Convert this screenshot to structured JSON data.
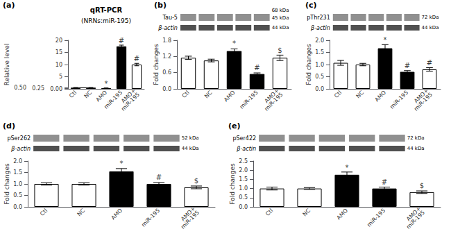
{
  "chart_data": [
    {
      "type": "bar",
      "panel_label": "(a)",
      "title": "qRT-PCR",
      "subtitle": "(NRNs:miR-195)",
      "categories": [
        "Ctl",
        "NC",
        "AMO",
        "miR-195",
        "AMO+\nmiR-195"
      ],
      "values": [
        0.5,
        0.5,
        0.3,
        17.5,
        10.0
      ],
      "errors": [
        0.03,
        0.03,
        0.04,
        0.5,
        0.5
      ],
      "colors": [
        "white",
        "white",
        "black",
        "black",
        "white"
      ],
      "ylabel": "Relative level",
      "ylim": [
        0,
        20
      ],
      "yticks": [
        {
          "value": 0,
          "label": "0.00"
        },
        0.25,
        {
          "value": 0.5,
          "label": "0.50"
        },
        5,
        10,
        15,
        20
      ],
      "annotations": [
        {
          "text": "*",
          "x": "AMO",
          "y": 0.38
        },
        {
          "text": "#",
          "x": "miR-195",
          "y": 18.2
        },
        {
          "text": "#",
          "x": "AMO+\nmiR-195",
          "y": 10.7
        }
      ],
      "bracket": {
        "from": "Ctl",
        "to": "NC",
        "y": 0.6
      },
      "grid": false
    },
    {
      "type": "bar",
      "panel_label": "(b)",
      "blot_labels": [
        "Tau-5",
        "β-actin"
      ],
      "kda_labels": [
        "68 kDa",
        "45 kDa",
        "44 kDa"
      ],
      "categories": [
        "Ctl",
        "NC",
        "AMO",
        "miR-195",
        "AMO+\nmiR-195"
      ],
      "values": [
        1.15,
        1.05,
        1.4,
        0.55,
        1.15
      ],
      "errors": [
        0.06,
        0.05,
        0.08,
        0.04,
        0.1
      ],
      "colors": [
        "white",
        "white",
        "black",
        "black",
        "white"
      ],
      "ylabel": "Fold changes",
      "ylim": [
        0,
        1.8
      ],
      "yticks": [
        {
          "value": 0,
          "label": "0.0"
        },
        0.6,
        1.2,
        1.8
      ],
      "annotations": [
        {
          "text": "*",
          "x": "AMO",
          "y": 1.52
        },
        {
          "text": "#",
          "x": "miR-195",
          "y": 0.63
        },
        {
          "text": "$",
          "x": "AMO+\nmiR-195",
          "y": 1.28
        }
      ],
      "grid": false
    },
    {
      "type": "bar",
      "panel_label": "(c)",
      "blot_labels": [
        "pThr231",
        "β-actin"
      ],
      "kda_labels": [
        "72 kDa",
        "44 kDa"
      ],
      "categories": [
        "Ctl",
        "NC",
        "AMO",
        "miR-195",
        "AMO+\nmiR-195"
      ],
      "values": [
        1.07,
        1.0,
        1.67,
        0.7,
        0.8
      ],
      "errors": [
        0.1,
        0.05,
        0.15,
        0.05,
        0.07
      ],
      "colors": [
        "white",
        "white",
        "black",
        "black",
        "white"
      ],
      "ylabel": "Fold changes",
      "ylim": [
        0,
        2.0
      ],
      "yticks": [
        {
          "value": 0,
          "label": "0.0"
        },
        0.5,
        {
          "value": 1,
          "label": "1.0"
        },
        1.5,
        {
          "value": 2,
          "label": "2.0"
        }
      ],
      "annotations": [
        {
          "text": "*",
          "x": "AMO",
          "y": 1.85
        },
        {
          "text": "#",
          "x": "miR-195",
          "y": 0.78
        },
        {
          "text": "#",
          "x": "AMO+\nmiR-195",
          "y": 0.9
        }
      ],
      "grid": false
    },
    {
      "type": "bar",
      "panel_label": "(d)",
      "blot_labels": [
        "pSer262",
        "β-actin"
      ],
      "kda_labels": [
        "52 kDa",
        "44 kDa"
      ],
      "categories": [
        "Ctl",
        "NC",
        "AMO",
        "miR-195",
        "AMO+\nmiR-195"
      ],
      "values": [
        1.0,
        1.0,
        1.55,
        1.0,
        0.85
      ],
      "errors": [
        0.05,
        0.05,
        0.12,
        0.06,
        0.06
      ],
      "colors": [
        "white",
        "white",
        "black",
        "black",
        "white"
      ],
      "ylabel": "Fold changes",
      "ylim": [
        0,
        2.0
      ],
      "yticks": [
        {
          "value": 0,
          "label": "0.0"
        },
        0.5,
        {
          "value": 1,
          "label": "1.0"
        },
        1.5,
        {
          "value": 2,
          "label": "2.0"
        }
      ],
      "annotations": [
        {
          "text": "*",
          "x": "AMO",
          "y": 1.7
        },
        {
          "text": "#",
          "x": "miR-195",
          "y": 1.1
        },
        {
          "text": "$",
          "x": "AMO+\nmiR-195",
          "y": 0.95
        }
      ],
      "grid": false
    },
    {
      "type": "bar",
      "panel_label": "(e)",
      "blot_labels": [
        "pSer422",
        "β-actin"
      ],
      "kda_labels": [
        "72 kDa",
        "44 kDa"
      ],
      "categories": [
        "Ctl",
        "NC",
        "AMO",
        "miR-195",
        "AMO+\nmiR-195"
      ],
      "values": [
        1.0,
        1.0,
        1.75,
        1.0,
        0.8
      ],
      "errors": [
        0.08,
        0.05,
        0.15,
        0.08,
        0.07
      ],
      "colors": [
        "white",
        "white",
        "black",
        "black",
        "white"
      ],
      "ylabel": "Fold changes",
      "ylim": [
        0,
        2.5
      ],
      "yticks": [
        {
          "value": 0,
          "label": "0.0"
        },
        0.5,
        {
          "value": 1,
          "label": "1.0"
        },
        1.5,
        {
          "value": 2,
          "label": "2.0"
        },
        2.5
      ],
      "annotations": [
        {
          "text": "*",
          "x": "AMO",
          "y": 1.93
        },
        {
          "text": "#",
          "x": "miR-195",
          "y": 1.12
        },
        {
          "text": "$",
          "x": "AMO+\nmiR-195",
          "y": 0.92
        }
      ],
      "grid": false
    }
  ]
}
